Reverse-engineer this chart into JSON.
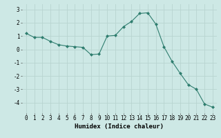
{
  "x": [
    0,
    1,
    2,
    3,
    4,
    5,
    6,
    7,
    8,
    9,
    10,
    11,
    12,
    13,
    14,
    15,
    16,
    17,
    18,
    19,
    20,
    21,
    22,
    23
  ],
  "y": [
    1.2,
    0.9,
    0.9,
    0.6,
    0.35,
    0.25,
    0.2,
    0.15,
    -0.4,
    -0.35,
    1.0,
    1.05,
    1.7,
    2.1,
    2.7,
    2.75,
    1.9,
    0.2,
    -0.9,
    -1.8,
    -2.65,
    -3.0,
    -4.1,
    -4.35
  ],
  "line_color": "#2e7d6e",
  "marker": "D",
  "marker_size": 2.0,
  "bg_color": "#cde8e5",
  "grid_color": "#b8d4d0",
  "xlabel": "Humidex (Indice chaleur)",
  "xlabel_fontsize": 6.5,
  "tick_fontsize": 5.5,
  "ylim": [
    -4.8,
    3.4
  ],
  "xlim": [
    -0.5,
    23.5
  ],
  "yticks": [
    -4,
    -3,
    -2,
    -1,
    0,
    1,
    2,
    3
  ],
  "xticks": [
    0,
    1,
    2,
    3,
    4,
    5,
    6,
    7,
    8,
    9,
    10,
    11,
    12,
    13,
    14,
    15,
    16,
    17,
    18,
    19,
    20,
    21,
    22,
    23
  ]
}
